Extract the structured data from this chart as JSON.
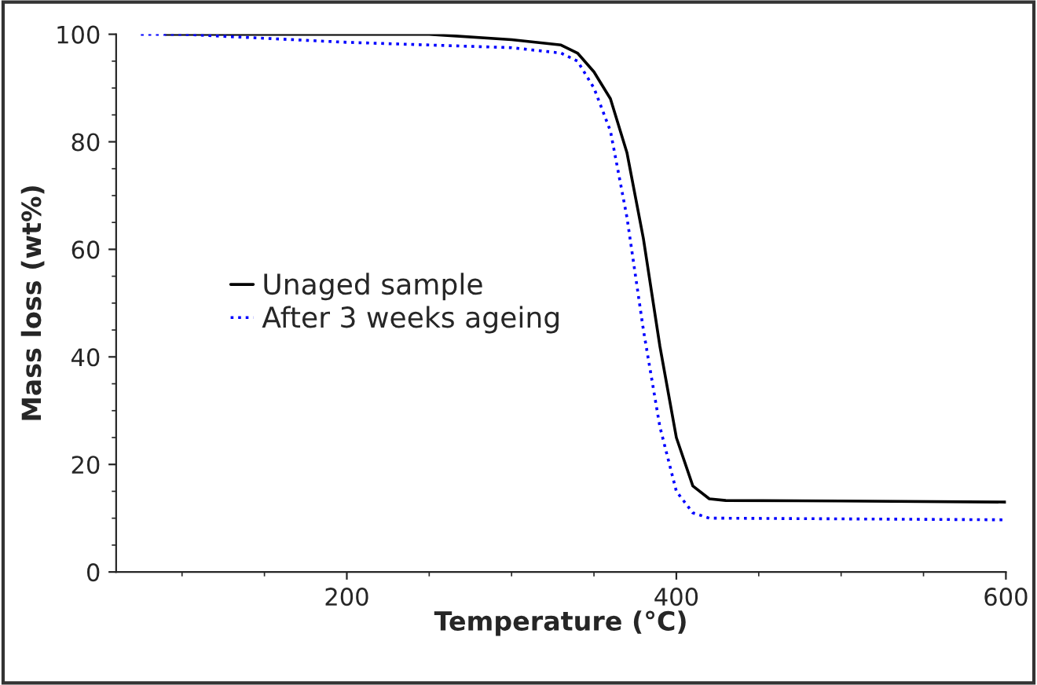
{
  "chart_data": {
    "type": "line",
    "xlabel": "Temperature (°C)",
    "ylabel": "Mass loss (wt%)",
    "xlim": [
      60,
      600
    ],
    "xticks": [
      200,
      400,
      600
    ],
    "ylim": [
      0,
      100
    ],
    "yticks": [
      0,
      20,
      40,
      60,
      80,
      100
    ],
    "grid": false,
    "legend": "left",
    "series": [
      {
        "name": "Unaged sample",
        "color": "#000000",
        "line_style": "solid",
        "x": [
          90,
          150,
          250,
          300,
          330,
          340,
          350,
          360,
          370,
          380,
          390,
          400,
          410,
          420,
          430,
          500,
          600
        ],
        "values": [
          100,
          100,
          100,
          99,
          98,
          96.5,
          93,
          88,
          78,
          62,
          42,
          25,
          16,
          13.6,
          13.3,
          13.2,
          13
        ]
      },
      {
        "name": "After 3 weeks ageing",
        "color": "#0000ff",
        "line_style": "dotted",
        "x": [
          75,
          100,
          200,
          300,
          330,
          340,
          350,
          360,
          370,
          380,
          390,
          400,
          410,
          420,
          430,
          600
        ],
        "values": [
          100,
          100,
          98.5,
          97.5,
          96.5,
          95,
          90,
          82,
          66,
          45,
          27,
          15,
          11,
          10,
          10,
          9.7
        ]
      }
    ]
  }
}
